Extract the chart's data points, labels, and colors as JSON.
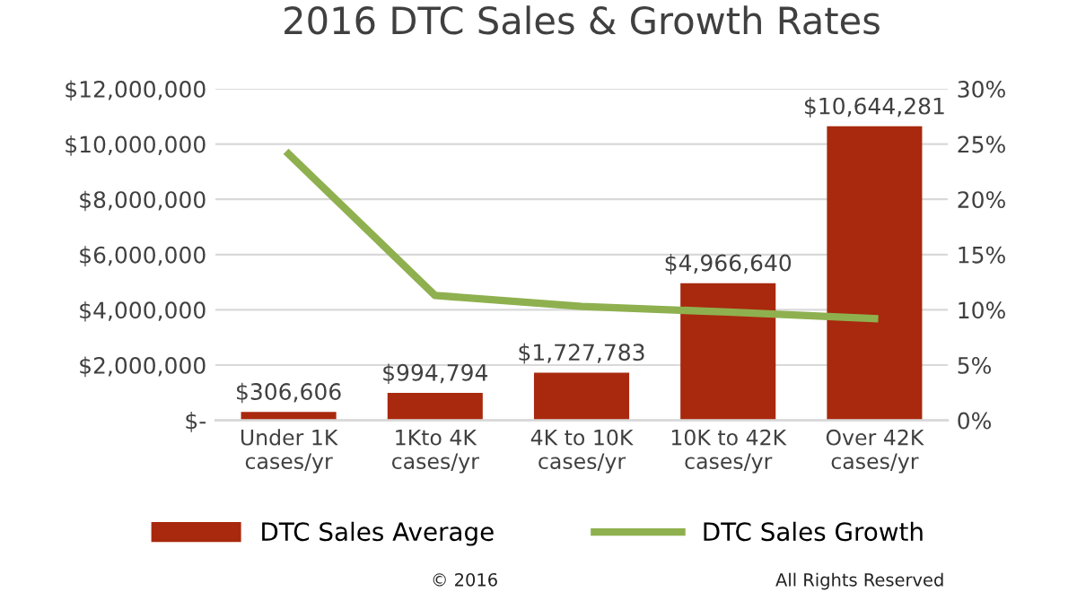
{
  "chart_data": {
    "type": "bar",
    "title": "2016 DTC Sales & Growth Rates",
    "categories": [
      "Under 1K\ncases/yr",
      "1Kto 4K\ncases/yr",
      "4K to 10K\ncases/yr",
      "10K to 42K\ncases/yr",
      "Over 42K\ncases/yr"
    ],
    "series": [
      {
        "name": "DTC Sales Average",
        "color": "#a8290e",
        "values": [
          306606,
          994794,
          1727783,
          4966640,
          10644281
        ],
        "value_labels": [
          "$306,606",
          "$994,794",
          "$1,727,783",
          "$4,966,640",
          "$10,644,281"
        ]
      },
      {
        "name": "DTC Sales Growth",
        "type": "line",
        "axis": "y2",
        "color": "#8fb04f",
        "values": [
          24.1,
          11.3,
          10.3,
          9.8,
          9.2
        ]
      }
    ],
    "ylim": [
      0,
      12000000
    ],
    "yticks": [
      {
        "value": 0,
        "label": "$-"
      },
      {
        "value": 2000000,
        "label": "$2,000,000"
      },
      {
        "value": 4000000,
        "label": "$4,000,000"
      },
      {
        "value": 6000000,
        "label": "$6,000,000"
      },
      {
        "value": 8000000,
        "label": "$8,000,000"
      },
      {
        "value": 10000000,
        "label": "$10,000,000"
      },
      {
        "value": 12000000,
        "label": "$12,000,000"
      }
    ],
    "y2lim": [
      0,
      30
    ],
    "y2ticks": [
      {
        "value": 0,
        "label": "0%"
      },
      {
        "value": 5,
        "label": "5%"
      },
      {
        "value": 10,
        "label": "10%"
      },
      {
        "value": 15,
        "label": "15%"
      },
      {
        "value": 20,
        "label": "20%"
      },
      {
        "value": 25,
        "label": "25%"
      },
      {
        "value": 30,
        "label": "30%"
      }
    ],
    "grid": "y",
    "legend": "bottom",
    "annotations": [
      "© 2016",
      "All Rights Reserved"
    ]
  }
}
